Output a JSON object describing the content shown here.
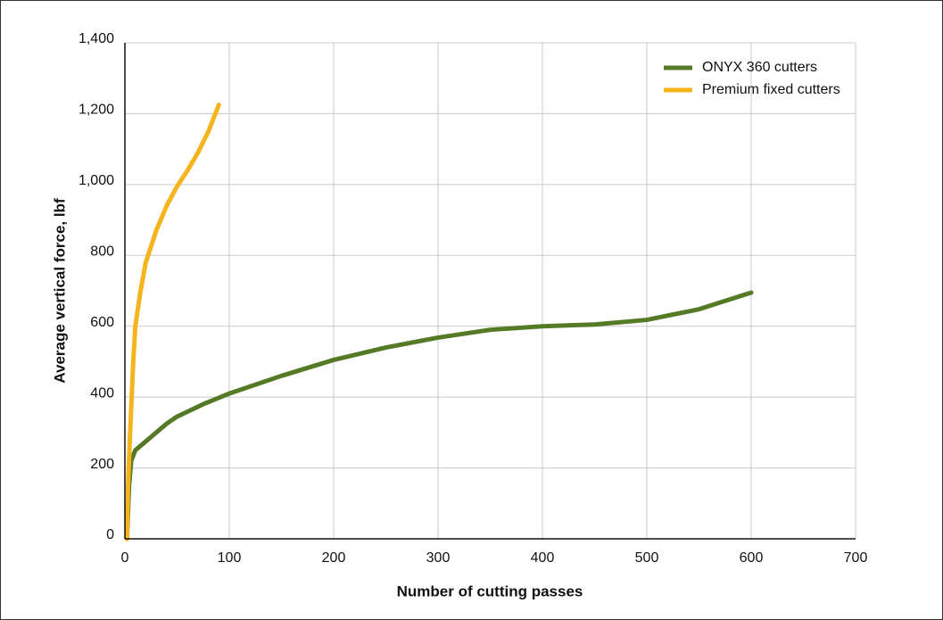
{
  "chart_data": {
    "type": "line",
    "x_label": "Number of cutting passes",
    "y_label": "Average vertical force, lbf",
    "xlim": [
      0,
      700
    ],
    "xticks": [
      0,
      100,
      200,
      300,
      400,
      500,
      600,
      700
    ],
    "ylim": [
      0,
      1400
    ],
    "yticks": [
      0,
      200,
      400,
      600,
      800,
      {
        "value": 1000,
        "label": "1,000"
      },
      {
        "value": 1200,
        "label": "1,200"
      },
      {
        "value": 1400,
        "label": "1,400"
      }
    ],
    "grid": true,
    "legend": "upper right",
    "series": [
      {
        "name": "ONYX 360 cutters",
        "color": "#557a25",
        "x": [
          2,
          4,
          6,
          10,
          20,
          30,
          40,
          50,
          75,
          100,
          150,
          200,
          250,
          300,
          350,
          400,
          450,
          500,
          550,
          600
        ],
        "values": [
          0,
          150,
          220,
          250,
          275,
          300,
          325,
          345,
          380,
          410,
          460,
          505,
          540,
          568,
          590,
          600,
          605,
          618,
          648,
          695
        ]
      },
      {
        "name": "Premium fixed cutters",
        "color": "#f6b41c",
        "x": [
          2,
          3,
          5,
          8,
          10,
          15,
          20,
          30,
          40,
          50,
          60,
          70,
          80,
          90
        ],
        "values": [
          0,
          150,
          300,
          500,
          600,
          700,
          780,
          870,
          940,
          995,
          1040,
          1090,
          1150,
          1225
        ]
      }
    ]
  }
}
